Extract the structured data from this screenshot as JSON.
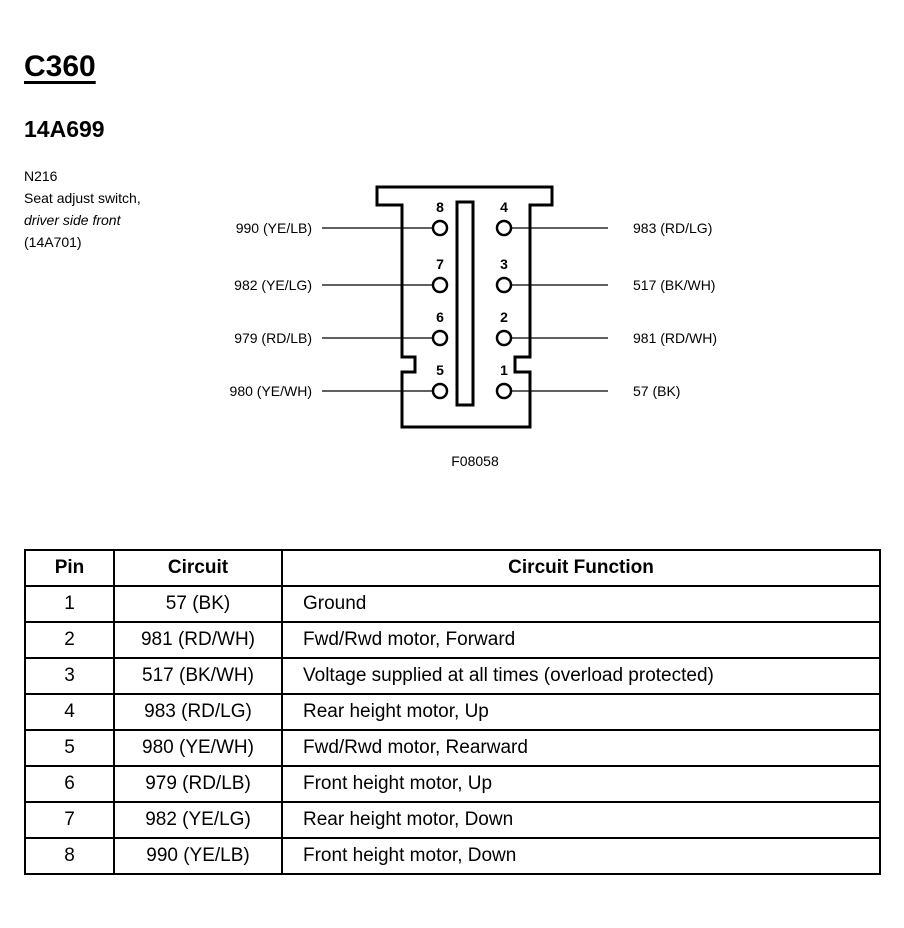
{
  "connector": {
    "id": "C360",
    "part": "14A699",
    "code": "N216",
    "desc_line1": "Seat adjust switch,",
    "desc_line2": "driver side front",
    "desc_line3": "(14A701)"
  },
  "figure_id": "F08058",
  "pins_left": [
    {
      "pin": "8",
      "circuit": "990 (YE/LB)"
    },
    {
      "pin": "7",
      "circuit": "982 (YE/LG)"
    },
    {
      "pin": "6",
      "circuit": "979 (RD/LB)"
    },
    {
      "pin": "5",
      "circuit": "980 (YE/WH)"
    }
  ],
  "pins_right": [
    {
      "pin": "4",
      "circuit": "983 (RD/LG)"
    },
    {
      "pin": "3",
      "circuit": "517 (BK/WH)"
    },
    {
      "pin": "2",
      "circuit": "981 (RD/WH)"
    },
    {
      "pin": "1",
      "circuit": "57 (BK)"
    }
  ],
  "table": {
    "headers": [
      "Pin",
      "Circuit",
      "Circuit Function"
    ],
    "rows": [
      [
        "1",
        "57 (BK)",
        "Ground"
      ],
      [
        "2",
        "981 (RD/WH)",
        "Fwd/Rwd motor, Forward"
      ],
      [
        "3",
        "517 (BK/WH)",
        "Voltage supplied at all times (overload protected)"
      ],
      [
        "4",
        "983 (RD/LG)",
        "Rear height motor, Up"
      ],
      [
        "5",
        "980 (YE/WH)",
        "Fwd/Rwd motor, Rearward"
      ],
      [
        "6",
        "979 (RD/LB)",
        "Front height motor, Up"
      ],
      [
        "7",
        "982 (YE/LG)",
        "Rear height motor, Down"
      ],
      [
        "8",
        "990 (YE/LB)",
        "Front height motor, Down"
      ]
    ]
  }
}
